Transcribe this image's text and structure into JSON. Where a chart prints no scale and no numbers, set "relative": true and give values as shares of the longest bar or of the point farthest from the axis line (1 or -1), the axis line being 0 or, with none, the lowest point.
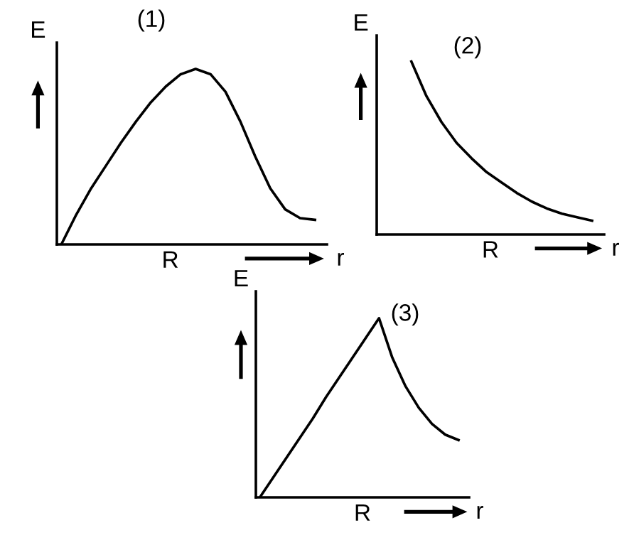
{
  "chart_data": [
    {
      "type": "line",
      "title": "(1)",
      "xlabel": "r",
      "ylabel": "E",
      "relative": true,
      "annotations": [
        "R"
      ],
      "categories": [
        null,
        null,
        null,
        null,
        null,
        null,
        null,
        null,
        null,
        null,
        null,
        null,
        null,
        null,
        null,
        null,
        null,
        null
      ],
      "series": [
        {
          "color": "#000000",
          "values": [
            0,
            0.17,
            0.32,
            0.45,
            0.58,
            0.7,
            0.81,
            0.9,
            0.97,
            1.0,
            0.97,
            0.87,
            0.7,
            0.5,
            0.32,
            0.2,
            0.15,
            0.14
          ]
        }
      ]
    },
    {
      "type": "line",
      "title": "(2)",
      "xlabel": "r",
      "ylabel": "E",
      "relative": true,
      "annotations": [
        "R"
      ],
      "categories": [
        null,
        null,
        null,
        null,
        null,
        null,
        null,
        null,
        null,
        null,
        null,
        null,
        null,
        null,
        null
      ],
      "series": [
        {
          "color": "#000000",
          "values": [
            null,
            null,
            1.0,
            0.8,
            0.65,
            0.53,
            0.44,
            0.36,
            0.3,
            0.24,
            0.19,
            0.15,
            0.12,
            0.1,
            0.08
          ]
        }
      ]
    },
    {
      "type": "line",
      "title": "(3)",
      "xlabel": "r",
      "ylabel": "E",
      "relative": true,
      "annotations": [
        "R"
      ],
      "categories": [
        null,
        null,
        null,
        null,
        null,
        null,
        null,
        null,
        null,
        null,
        null,
        null,
        null,
        null,
        null,
        null
      ],
      "series": [
        {
          "color": "#000000",
          "values": [
            0,
            0.11,
            0.22,
            0.33,
            0.44,
            0.56,
            0.67,
            0.78,
            0.89,
            1.0,
            0.78,
            0.62,
            0.5,
            0.41,
            0.35,
            0.32
          ]
        }
      ]
    }
  ]
}
